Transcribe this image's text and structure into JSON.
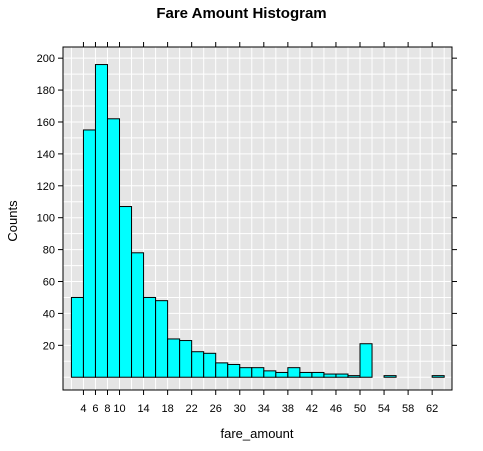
{
  "chart_data": {
    "type": "bar",
    "title": "Fare Amount Histogram",
    "xlabel": "fare_amount",
    "ylabel": "Counts",
    "bin_width": 2,
    "bins": [
      {
        "x0": 2,
        "x1": 4,
        "count": 50
      },
      {
        "x0": 4,
        "x1": 6,
        "count": 155
      },
      {
        "x0": 6,
        "x1": 8,
        "count": 196
      },
      {
        "x0": 8,
        "x1": 10,
        "count": 162
      },
      {
        "x0": 10,
        "x1": 12,
        "count": 107
      },
      {
        "x0": 12,
        "x1": 14,
        "count": 78
      },
      {
        "x0": 14,
        "x1": 16,
        "count": 50
      },
      {
        "x0": 16,
        "x1": 18,
        "count": 48
      },
      {
        "x0": 18,
        "x1": 20,
        "count": 24
      },
      {
        "x0": 20,
        "x1": 22,
        "count": 23
      },
      {
        "x0": 22,
        "x1": 24,
        "count": 16
      },
      {
        "x0": 24,
        "x1": 26,
        "count": 15
      },
      {
        "x0": 26,
        "x1": 28,
        "count": 9
      },
      {
        "x0": 28,
        "x1": 30,
        "count": 8
      },
      {
        "x0": 30,
        "x1": 32,
        "count": 6
      },
      {
        "x0": 32,
        "x1": 34,
        "count": 6
      },
      {
        "x0": 34,
        "x1": 36,
        "count": 4
      },
      {
        "x0": 36,
        "x1": 38,
        "count": 3
      },
      {
        "x0": 38,
        "x1": 40,
        "count": 6
      },
      {
        "x0": 40,
        "x1": 42,
        "count": 3
      },
      {
        "x0": 42,
        "x1": 44,
        "count": 3
      },
      {
        "x0": 44,
        "x1": 46,
        "count": 2
      },
      {
        "x0": 46,
        "x1": 48,
        "count": 2
      },
      {
        "x0": 48,
        "x1": 50,
        "count": 1
      },
      {
        "x0": 50,
        "x1": 52,
        "count": 21
      },
      {
        "x0": 52,
        "x1": 54,
        "count": 0
      },
      {
        "x0": 54,
        "x1": 56,
        "count": 1
      },
      {
        "x0": 56,
        "x1": 58,
        "count": 0
      },
      {
        "x0": 58,
        "x1": 60,
        "count": 0
      },
      {
        "x0": 60,
        "x1": 62,
        "count": 0
      },
      {
        "x0": 62,
        "x1": 64,
        "count": 1
      }
    ],
    "xticks": [
      4,
      6,
      8,
      10,
      14,
      18,
      22,
      26,
      30,
      34,
      38,
      42,
      46,
      50,
      54,
      58,
      62
    ],
    "yticks": [
      20,
      40,
      60,
      80,
      100,
      120,
      140,
      160,
      180,
      200
    ],
    "xlim": [
      0.6,
      65.3
    ],
    "ylim": [
      -8,
      207
    ],
    "grid": true,
    "colors": {
      "bar_fill": "#00FFFF",
      "bar_stroke": "#000000",
      "panel_background": "#E5E5E5",
      "grid": "#FFFFFF"
    }
  }
}
